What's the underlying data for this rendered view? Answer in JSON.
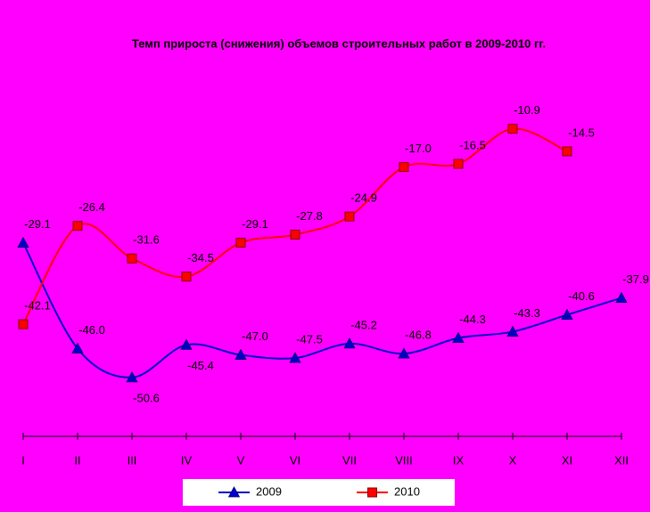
{
  "chart_data": {
    "type": "line",
    "title": "Темп прироста (снижения) объемов строительных работ в 2009-2010 гг.",
    "categories": [
      "I",
      "II",
      "III",
      "IV",
      "V",
      "VI",
      "VII",
      "VIII",
      "IX",
      "X",
      "XI",
      "XII"
    ],
    "series": [
      {
        "name": "2009",
        "color": "#0000cc",
        "marker": "triangle",
        "values": [
          -29.1,
          -46.0,
          -50.6,
          -45.4,
          -47.0,
          -47.5,
          -45.2,
          -46.8,
          -44.3,
          -43.3,
          -40.6,
          -37.9
        ],
        "value_labels": [
          "-29.1",
          "-46.0",
          "-50.6",
          "-45.4",
          "-47.0",
          "-47.5",
          "-45.2",
          "-46.8",
          "-44.3",
          "-43.3",
          "-40.6",
          "-37.9"
        ]
      },
      {
        "name": "2010",
        "color": "#ff0000",
        "marker": "square",
        "values": [
          -42.1,
          -26.4,
          -31.6,
          -34.5,
          -29.1,
          -27.8,
          -24.9,
          -17.0,
          -16.5,
          -10.9,
          -14.5,
          null
        ],
        "value_labels": [
          "-42.1",
          "-26.4",
          "-31.6",
          "-34.5",
          "-29.1",
          "-27.8",
          "-24.9",
          "-17.0",
          "-16.5",
          "-10.9",
          "-14.5",
          null
        ]
      }
    ],
    "ylim": [
      -60,
      0
    ],
    "background": "#ff00ff",
    "legend": "bottom"
  }
}
